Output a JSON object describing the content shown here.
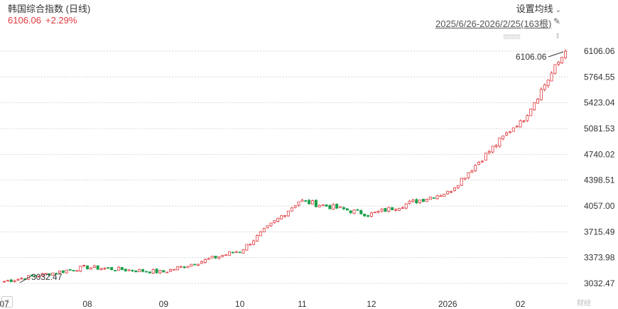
{
  "header": {
    "title": "韩国综合指数 (日线)",
    "last": "6106.06",
    "change": "+2.29%",
    "settings_label": "设置均线",
    "range_label": "2025/6/26-2026/2/25(163根)"
  },
  "colors": {
    "up": "#e0393e",
    "down": "#1a9f4a",
    "grid": "#d7d7d7",
    "axis_text": "#333333"
  },
  "chart_data": {
    "type": "candlestick",
    "x_tick_labels": [
      "07",
      "08",
      "09",
      "10",
      "11",
      "12",
      "2026",
      "02"
    ],
    "y_tick_labels": [
      "6106.06",
      "5764.55",
      "5423.04",
      "5081.53",
      "4740.02",
      "4398.51",
      "4057.00",
      "3715.49",
      "3373.98",
      "3032.47"
    ],
    "ylim": [
      3032.47,
      6106.06
    ],
    "grid": true,
    "annotations": [
      {
        "text": "6106.06",
        "type": "max"
      },
      {
        "text": "3032.47",
        "type": "min"
      }
    ],
    "periods": [
      {
        "label": "07",
        "first_close": 3060,
        "last_close": 3245,
        "sessions": 24
      },
      {
        "label": "08",
        "first_close": 3245,
        "last_close": 3185,
        "sessions": 22
      },
      {
        "label": "09",
        "first_close": 3185,
        "last_close": 3455,
        "sessions": 22
      },
      {
        "label": "10",
        "first_close": 3455,
        "last_close": 4120,
        "sessions": 18
      },
      {
        "label": "11",
        "first_close": 4120,
        "last_close": 3950,
        "sessions": 20
      },
      {
        "label": "12",
        "first_close": 3950,
        "last_close": 4230,
        "sessions": 22
      },
      {
        "label": "2026",
        "first_close": 4230,
        "last_close": 5150,
        "sessions": 21
      },
      {
        "label": "02",
        "first_close": 5150,
        "last_close": 6106.06,
        "sessions": 14
      }
    ]
  },
  "watermark": "财经",
  "nav_left": "<"
}
